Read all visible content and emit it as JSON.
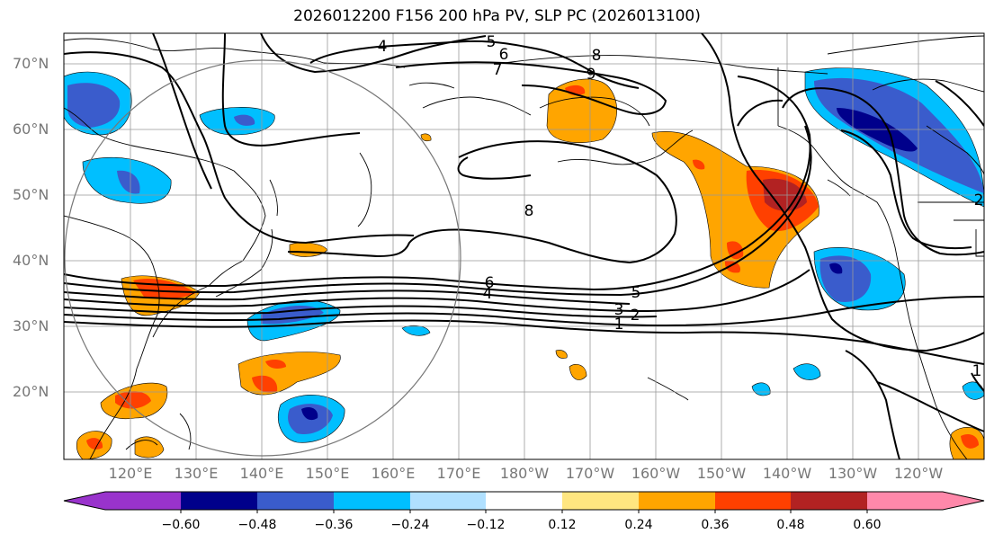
{
  "title": "2026012200 F156 200 hPa PV, SLP PC (2026013100)",
  "lat_labels": [
    "70°N",
    "60°N",
    "50°N",
    "40°N",
    "30°N",
    "20°N"
  ],
  "lon_labels": [
    "120°E",
    "130°E",
    "140°E",
    "150°E",
    "160°E",
    "170°E",
    "180°W",
    "170°W",
    "160°W",
    "150°W",
    "140°W",
    "130°W",
    "120°W"
  ],
  "colorbar": {
    "colors": [
      "#9933cc",
      "#00008b",
      "#3a5ccc",
      "#00bfff",
      "#b0e0ff",
      "#ffffff",
      "#ffe680",
      "#ffa500",
      "#ff4000",
      "#b22222",
      "#ff88aa"
    ],
    "tick_labels": [
      "−0.60",
      "−0.48",
      "−0.36",
      "−0.24",
      "−0.12",
      "0.12",
      "0.24",
      "0.36",
      "0.48",
      "0.60"
    ]
  },
  "contour_labels": [
    "4",
    "5",
    "6",
    "7",
    "8",
    "9",
    "8",
    "6",
    "4",
    "5",
    "3",
    "2",
    "1",
    "2",
    "1"
  ],
  "pc_colors": {
    "neg1": "#00bfff",
    "neg2": "#3a5ccc",
    "neg3": "#00008b",
    "pos1": "#ffa500",
    "pos2": "#ff4000",
    "pos3": "#b22222"
  }
}
